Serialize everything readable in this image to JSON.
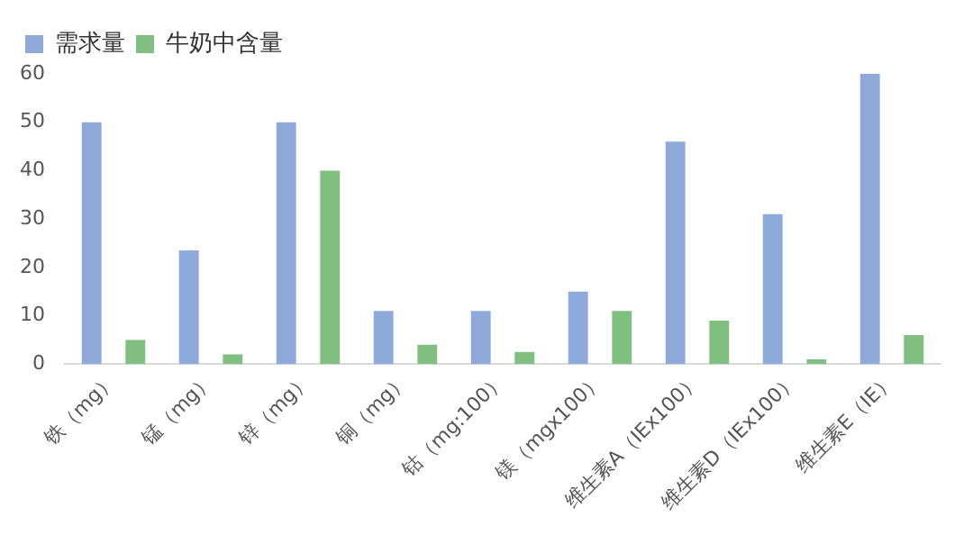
{
  "chart_data": {
    "type": "bar",
    "categories": [
      "铁（mg）",
      "锰（mg）",
      "锌（mg）",
      "铜（mg）",
      "钴（mg:100）",
      "镁（mgx100）",
      "维生素A（IEx100）",
      "维生素D（IEx100）",
      "维生素E（IE）"
    ],
    "series": [
      {
        "name": "需求量",
        "color": "#8eaadb",
        "values": [
          50,
          23.5,
          50,
          11,
          11,
          15,
          46,
          31,
          60
        ]
      },
      {
        "name": "牛奶中含量",
        "color": "#7fbf7f",
        "values": [
          5,
          2,
          40,
          4,
          2.5,
          11,
          9,
          1,
          6
        ]
      }
    ],
    "ylim": [
      0,
      60
    ],
    "yticks": [
      0,
      10,
      20,
      30,
      40,
      50,
      60
    ],
    "grid": false,
    "legend": "top left"
  }
}
